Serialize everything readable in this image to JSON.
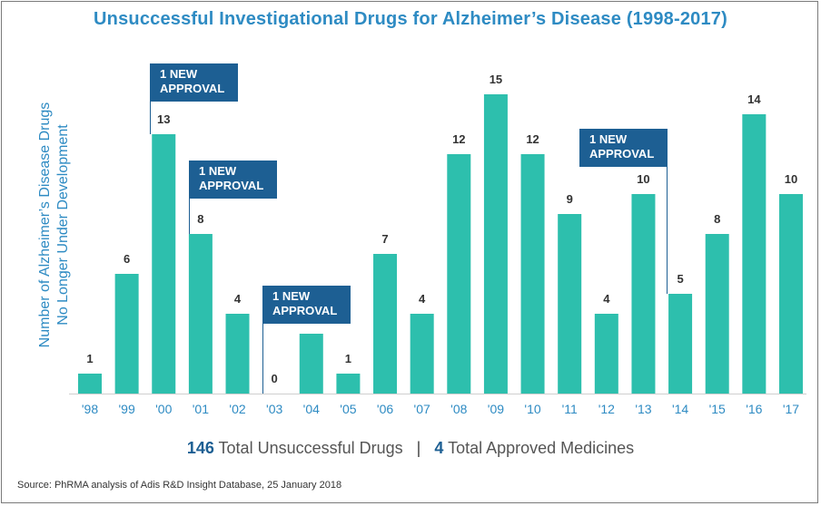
{
  "chart_data": {
    "type": "bar",
    "title": "Unsuccessful Investigational Drugs for Alzheimer’s Disease (1998-2017)",
    "ylabel": [
      "Number of Alzheimer’s Disease Drugs",
      "No Longer Under Development"
    ],
    "xlabel": "",
    "categories": [
      "'98",
      "'99",
      "'00",
      "'01",
      "'02",
      "'03",
      "'04",
      "'05",
      "'06",
      "'07",
      "'08",
      "'09",
      "'10",
      "'11",
      "'12",
      "'13",
      "'14",
      "'15",
      "'16",
      "'17"
    ],
    "values": [
      1,
      6,
      13,
      8,
      4,
      0,
      3,
      1,
      7,
      4,
      12,
      15,
      12,
      9,
      4,
      10,
      5,
      8,
      14,
      10
    ],
    "ylim": [
      0,
      15
    ],
    "grid": false,
    "bar_color": "#2dbfad",
    "annotations": [
      {
        "category": "'00",
        "lines": [
          "1 NEW",
          "APPROVAL"
        ]
      },
      {
        "category": "'01",
        "lines": [
          "1 NEW",
          "APPROVAL"
        ]
      },
      {
        "category": "'03",
        "lines": [
          "1 NEW",
          "APPROVAL"
        ]
      },
      {
        "category": "'14",
        "lines": [
          "1 NEW",
          "APPROVAL"
        ]
      }
    ]
  },
  "summary": {
    "unsuccessful_count": "146",
    "unsuccessful_label": "Total Unsuccessful Drugs",
    "separator": "|",
    "approved_count": "4",
    "approved_label": "Total Approved Medicines"
  },
  "source": "Source: PhRMA analysis of Adis R&D Insight Database, 25 January 2018",
  "colors": {
    "title": "#2e8bc3",
    "axis_label": "#2e8bc3",
    "tick_label": "#2e8bc3",
    "annotation_box": "#1d5f93",
    "summary_number": "#1d5f93"
  }
}
